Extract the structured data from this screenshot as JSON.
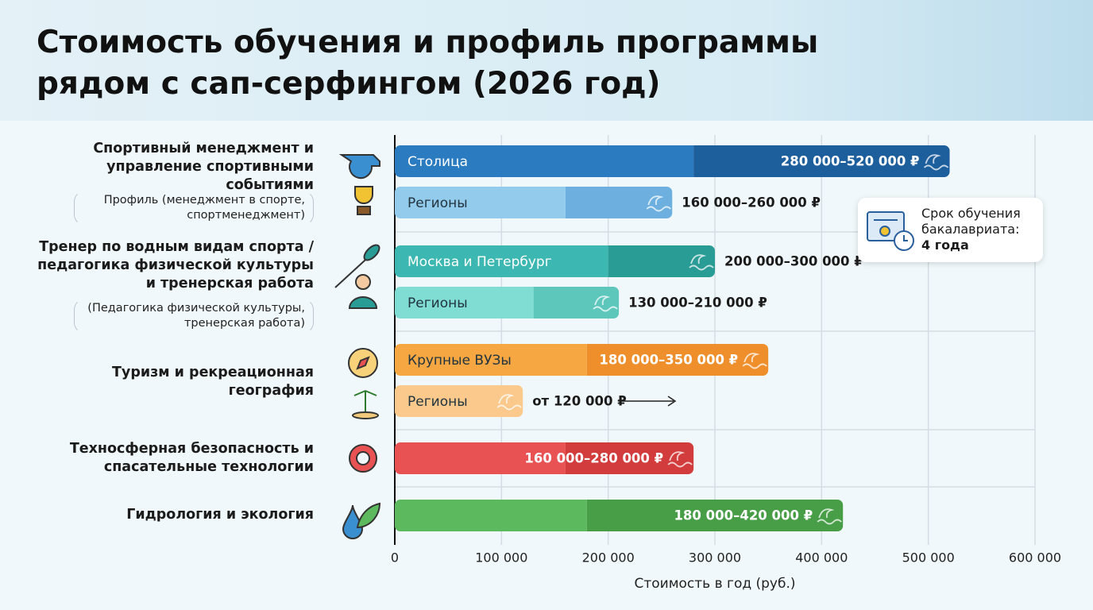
{
  "chart_data": {
    "type": "range-bar",
    "title": "Стоимость обучения и профиль программы рядом с сап-серфингом (2026 год)",
    "x_label": "Стоимость в год (руб.)",
    "xlim": [
      0,
      600000
    ],
    "xticks": [
      0,
      {
        "value": 100000,
        "label": "100 000"
      },
      {
        "value": 200000,
        "label": "200 000"
      },
      {
        "value": 300000,
        "label": "300 000"
      },
      {
        "value": 400000,
        "label": "400 000"
      },
      {
        "value": 500000,
        "label": "500 000"
      },
      {
        "value": 600000,
        "label": "600 000"
      }
    ],
    "grid": true,
    "groups": [
      {
        "label": "Спортивный менеджмент и управление спортивными событиями",
        "note": "Профиль (менеджмент в спорте, спортменеджмент)",
        "bars": [
          {
            "name": "Столица",
            "low": 280000,
            "high": 520000,
            "value_label": "280 000–520 000 ₽",
            "label_position": "inside",
            "color": "#2a7bc0",
            "color_dark": "#1d5e9c"
          },
          {
            "name": "Регионы",
            "low": 160000,
            "high": 260000,
            "value_label": "160 000–260 000 ₽",
            "label_position": "outside",
            "color": "#93cbec",
            "color_dark": "#6db0df"
          }
        ]
      },
      {
        "label": "Тренер по водным видам спорта / педагогика физической культуры и тренерская работа",
        "note": "(Педагогика физической культуры, тренерская работа)",
        "bars": [
          {
            "name": "Москва и Петербург",
            "low": 200000,
            "high": 300000,
            "value_label": "200 000–300 000 ₽",
            "label_position": "outside",
            "color": "#3cb7b1",
            "color_dark": "#2a9c96"
          },
          {
            "name": "Регионы",
            "low": 130000,
            "high": 210000,
            "value_label": "130 000–210 000 ₽",
            "label_position": "outside",
            "color": "#80ddd3",
            "color_dark": "#5ec7bc"
          }
        ]
      },
      {
        "label": "Туризм и рекреационная география",
        "bars": [
          {
            "name": "Крупные ВУЗы",
            "low": 180000,
            "high": 350000,
            "value_label": "180 000–350 000 ₽",
            "label_position": "inside",
            "color": "#f7a742",
            "color_dark": "#ef8f2c"
          },
          {
            "name": "Регионы",
            "low": 120000,
            "high": null,
            "value_label": "от 120 000 ₽",
            "label_position": "outside",
            "color": "#fbc98b",
            "color_dark": "#fbc98b"
          }
        ]
      },
      {
        "label": "Техносферная безопасность и спасательные технологии",
        "bars": [
          {
            "low": 160000,
            "high": 280000,
            "value_label": "160 000–280 000 ₽",
            "label_position": "inside",
            "color": "#e85252",
            "color_dark": "#d23c3c"
          }
        ]
      },
      {
        "label": "Гидрология и экология",
        "bars": [
          {
            "low": 180000,
            "high": 420000,
            "value_label": "180 000–420 000 ₽",
            "label_position": "inside",
            "color": "#5db95d",
            "color_dark": "#479e47"
          }
        ]
      }
    ],
    "info": {
      "text": "Срок обучения бакалавриата:",
      "value": "4 года"
    }
  }
}
